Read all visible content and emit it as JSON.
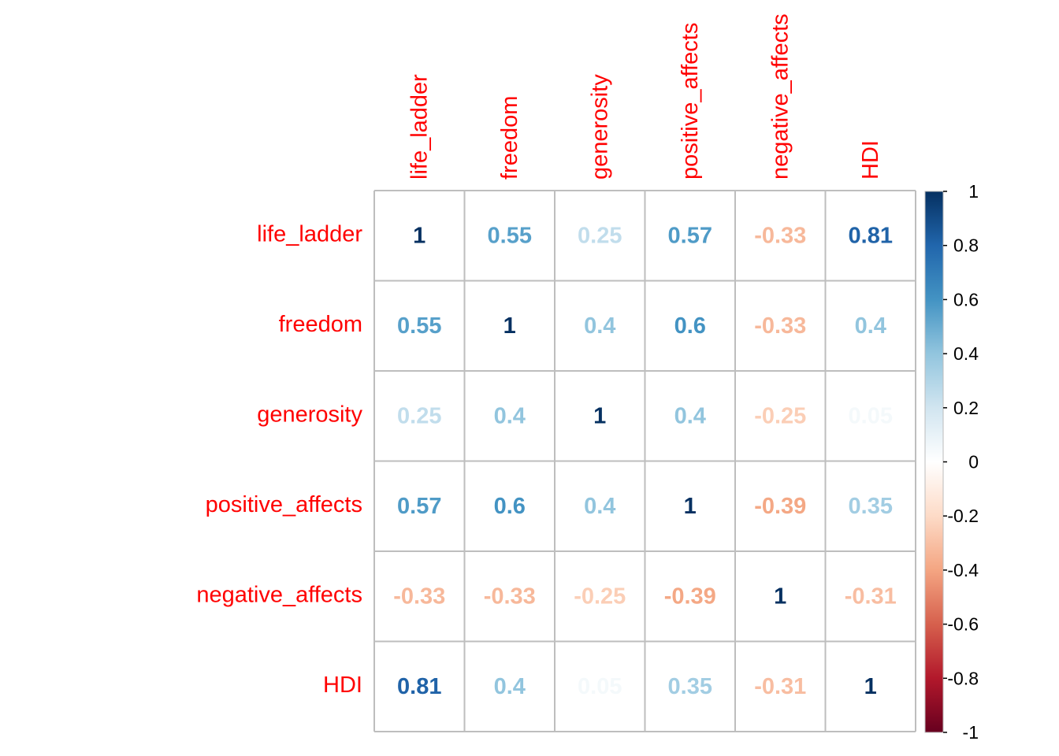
{
  "chart_data": {
    "type": "heatmap",
    "variables": [
      "life_ladder",
      "freedom",
      "generosity",
      "positive_affects",
      "negative_affects",
      "HDI"
    ],
    "matrix": [
      [
        1,
        0.55,
        0.25,
        0.57,
        -0.33,
        0.81
      ],
      [
        0.55,
        1,
        0.4,
        0.6,
        -0.33,
        0.4
      ],
      [
        0.25,
        0.4,
        1,
        0.4,
        -0.25,
        0.05
      ],
      [
        0.57,
        0.6,
        0.4,
        1,
        -0.39,
        0.35
      ],
      [
        -0.33,
        -0.33,
        -0.25,
        -0.39,
        1,
        -0.31
      ],
      [
        0.81,
        0.4,
        0.05,
        0.35,
        -0.31,
        1
      ]
    ],
    "value_labels": [
      [
        "1",
        "0.55",
        "0.25",
        "0.57",
        "-0.33",
        "0.81"
      ],
      [
        "0.55",
        "1",
        "0.4",
        "0.6",
        "-0.33",
        "0.4"
      ],
      [
        "0.25",
        "0.4",
        "1",
        "0.4",
        "-0.25",
        "0.05"
      ],
      [
        "0.57",
        "0.6",
        "0.4",
        "1",
        "-0.39",
        "0.35"
      ],
      [
        "-0.33",
        "-0.33",
        "-0.25",
        "-0.39",
        "1",
        "-0.31"
      ],
      [
        "0.81",
        "0.4",
        "0.05",
        "0.35",
        "-0.31",
        "1"
      ]
    ],
    "colorbar": {
      "range": [
        -1,
        1
      ],
      "ticks": [
        1,
        0.8,
        0.6,
        0.4,
        0.2,
        0,
        -0.2,
        -0.4,
        -0.6,
        -0.8,
        -1
      ],
      "tick_labels": [
        "1",
        "0.8",
        "0.6",
        "0.4",
        "0.2",
        "0",
        "-0.2",
        "-0.4",
        "-0.6",
        "-0.8",
        "-1"
      ],
      "palette": [
        "#67001F",
        "#B2182B",
        "#D6604D",
        "#F4A582",
        "#FDDBC7",
        "#FFFFFF",
        "#D1E5F0",
        "#92C5DE",
        "#4393C3",
        "#2166AC",
        "#053061"
      ],
      "placement": "right"
    },
    "label_color": "#FF0000",
    "grid_color": "#BEBEBE",
    "title": "",
    "xlabel": "",
    "ylabel": ""
  }
}
